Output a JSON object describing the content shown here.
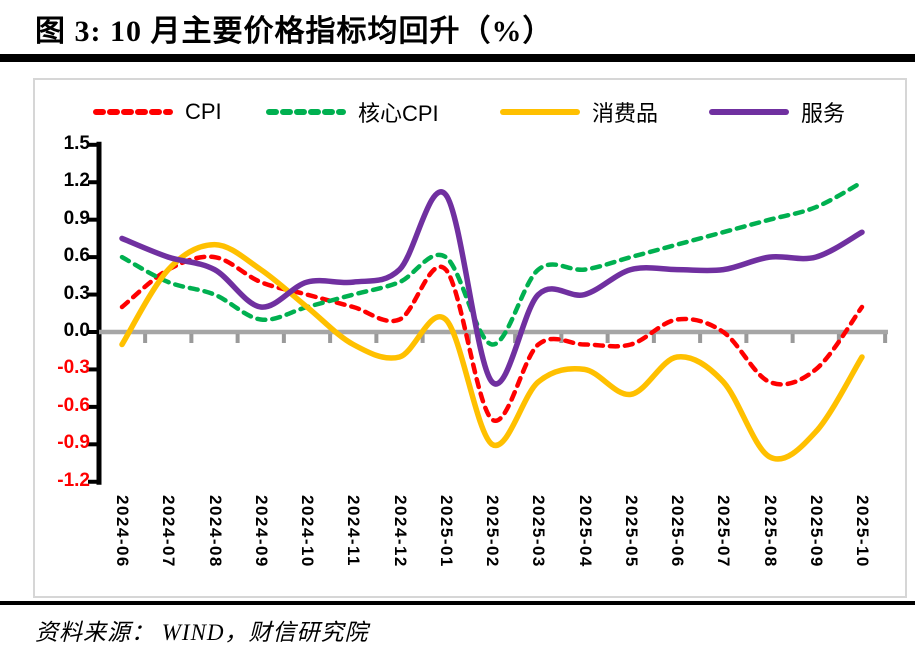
{
  "title": "图 3:  10 月主要价格指标均回升（%）",
  "source": "资料来源： WIND，财信研究院",
  "colors": {
    "axis": "#000000",
    "zero_line": "#A6A6A6",
    "x_tick": "#9A9A9A",
    "label_positive": "#000000",
    "label_negative": "#FF0000",
    "panel_border": "#D6D6D6"
  },
  "chart_data": {
    "type": "line",
    "title": "图 3:  10 月主要价格指标均回升（%）",
    "x": [
      "2024-06",
      "2024-07",
      "2024-08",
      "2024-09",
      "2024-10",
      "2024-11",
      "2024-12",
      "2025-01",
      "2025-02",
      "2025-03",
      "2025-04",
      "2025-05",
      "2025-06",
      "2025-07",
      "2025-08",
      "2025-09",
      "2025-10"
    ],
    "series": [
      {
        "name": "CPI",
        "color": "#FF0000",
        "style": "dashed",
        "values": [
          0.2,
          0.5,
          0.6,
          0.4,
          0.3,
          0.2,
          0.1,
          0.5,
          -0.7,
          -0.1,
          -0.1,
          -0.1,
          0.1,
          0.0,
          -0.4,
          -0.3,
          0.2
        ]
      },
      {
        "name": "核心CPI",
        "color": "#00B050",
        "style": "dashed",
        "values": [
          0.6,
          0.4,
          0.3,
          0.1,
          0.2,
          0.3,
          0.4,
          0.6,
          -0.1,
          0.5,
          0.5,
          0.6,
          0.7,
          0.8,
          0.9,
          1.0,
          1.2
        ]
      },
      {
        "name": "消费品",
        "color": "#FFC000",
        "style": "solid",
        "values": [
          -0.1,
          0.5,
          0.7,
          0.5,
          0.2,
          -0.1,
          -0.2,
          0.1,
          -0.9,
          -0.4,
          -0.3,
          -0.5,
          -0.2,
          -0.4,
          -1.0,
          -0.8,
          -0.2
        ]
      },
      {
        "name": "服务",
        "color": "#7030A0",
        "style": "solid",
        "values": [
          0.75,
          0.6,
          0.5,
          0.2,
          0.4,
          0.4,
          0.5,
          1.1,
          -0.4,
          0.3,
          0.3,
          0.5,
          0.5,
          0.5,
          0.6,
          0.6,
          0.8
        ]
      }
    ],
    "ylim": [
      -1.2,
      1.5
    ],
    "ytick_step": 0.3,
    "yticks": [
      "1.5",
      "1.2",
      "0.9",
      "0.6",
      "0.3",
      "0.0",
      "-0.3",
      "-0.6",
      "-0.9",
      "-1.2"
    ],
    "ylabel": "",
    "xlabel": "",
    "legend_position": "top",
    "grid": false,
    "unit": "%"
  }
}
